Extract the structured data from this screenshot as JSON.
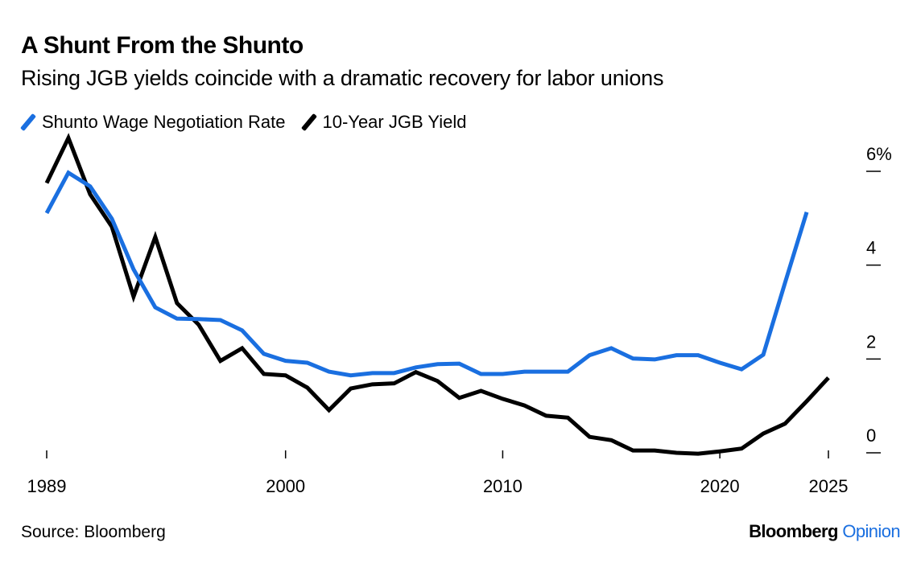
{
  "header": {
    "title": "A Shunt From the Shunto",
    "subtitle": "Rising JGB yields coincide with a dramatic recovery for labor unions"
  },
  "footer": {
    "source": "Source: Bloomberg",
    "brand_main": "Bloomberg",
    "brand_secondary": "Opinion",
    "brand_secondary_color": "#1a6fe0"
  },
  "chart_data": {
    "type": "line",
    "title": "A Shunt From the Shunto",
    "subtitle": "Rising JGB yields coincide with a dramatic recovery for labor unions",
    "xlabel": "",
    "ylabel": "",
    "xlim": [
      1989,
      2025
    ],
    "ylim": [
      0,
      6
    ],
    "x_ticks": [
      {
        "value": 1989,
        "label": "1989"
      },
      {
        "value": 2000,
        "label": "2000"
      },
      {
        "value": 2010,
        "label": "2010"
      },
      {
        "value": 2020,
        "label": "2020"
      },
      {
        "value": 2025,
        "label": "2025"
      }
    ],
    "y_ticks": [
      {
        "value": 0,
        "label": "0"
      },
      {
        "value": 2,
        "label": "2"
      },
      {
        "value": 4,
        "label": "4"
      },
      {
        "value": 6,
        "label": "6%"
      }
    ],
    "y_axis_side": "right",
    "grid": false,
    "legend_position": "top-left",
    "series": [
      {
        "name": "Shunto Wage Negotiation Rate",
        "color": "#1a6fe0",
        "x": [
          1989,
          1990,
          1991,
          1992,
          1993,
          1994,
          1995,
          1996,
          1997,
          1998,
          1999,
          2000,
          2001,
          2002,
          2003,
          2004,
          2005,
          2006,
          2007,
          2008,
          2009,
          2010,
          2011,
          2012,
          2013,
          2014,
          2015,
          2016,
          2017,
          2018,
          2019,
          2020,
          2021,
          2022,
          2023,
          2024
        ],
        "values": [
          5.11,
          5.97,
          5.68,
          4.99,
          3.91,
          3.1,
          2.86,
          2.85,
          2.83,
          2.61,
          2.11,
          1.96,
          1.92,
          1.73,
          1.65,
          1.7,
          1.7,
          1.82,
          1.89,
          1.9,
          1.68,
          1.68,
          1.73,
          1.73,
          1.73,
          2.08,
          2.23,
          2.01,
          1.99,
          2.08,
          2.08,
          1.92,
          1.78,
          2.09,
          3.62,
          5.13
        ]
      },
      {
        "name": "10-Year JGB Yield",
        "color": "#000000",
        "x": [
          1989,
          1990,
          1991,
          1992,
          1993,
          1994,
          1995,
          1996,
          1997,
          1998,
          1999,
          2000,
          2001,
          2002,
          2003,
          2004,
          2005,
          2006,
          2007,
          2008,
          2009,
          2010,
          2011,
          2012,
          2013,
          2014,
          2015,
          2016,
          2017,
          2018,
          2019,
          2020,
          2021,
          2022,
          2023,
          2024,
          2025
        ],
        "values": [
          5.75,
          6.71,
          5.51,
          4.82,
          3.33,
          4.6,
          3.19,
          2.73,
          1.96,
          2.23,
          1.68,
          1.65,
          1.39,
          0.91,
          1.37,
          1.46,
          1.48,
          1.72,
          1.53,
          1.17,
          1.32,
          1.15,
          1.01,
          0.79,
          0.75,
          0.34,
          0.27,
          0.05,
          0.05,
          0.0,
          -0.02,
          0.03,
          0.09,
          0.41,
          0.62,
          1.1,
          1.6
        ]
      }
    ]
  }
}
